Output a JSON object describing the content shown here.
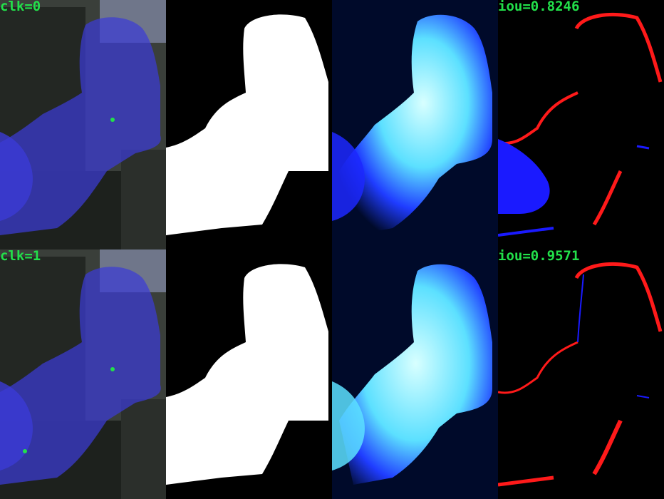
{
  "panels": [
    {
      "row": 0,
      "click_label": "clk=0",
      "iou_label": "iou=0.8246"
    },
    {
      "row": 1,
      "click_label": "clk=1",
      "iou_label": "iou=0.9571"
    }
  ],
  "colors": {
    "overlay_blue": "#3b3bd6",
    "click_dot": "#22e04a",
    "mask_white": "#ffffff",
    "error_red": "#ff1a1a",
    "error_blue": "#1a1aff",
    "heat_cyan": "#8ff7ff"
  }
}
